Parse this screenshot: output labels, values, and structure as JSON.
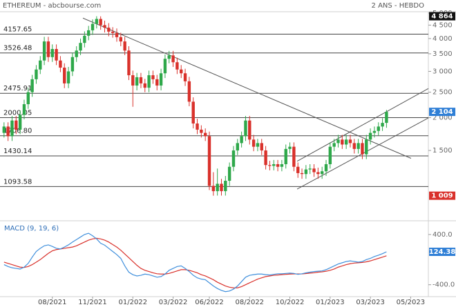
{
  "chart_data": [
    {
      "type": "candlestick",
      "title": "ETHEREUM - abcbourse.com",
      "subtitle": "2 ANS - HEBDO",
      "log_scale": true,
      "up_color": "#2ea84a",
      "down_color": "#d9312b",
      "level_color": "#444444",
      "trend_color": "#555555",
      "open": [
        1750,
        1850,
        1700,
        1950,
        1800,
        2050,
        2250,
        2500,
        2800,
        3050,
        3300,
        3900,
        3400,
        3650,
        3300,
        3100,
        2700,
        3000,
        3400,
        3600,
        3850,
        4100,
        4300,
        4550,
        4750,
        4500,
        4400,
        4250,
        4200,
        4050,
        3900,
        3600,
        2900,
        2650,
        2850,
        2700,
        2600,
        2900,
        2800,
        2650,
        2950,
        3350,
        3450,
        3250,
        3050,
        2950,
        2750,
        2300,
        1900,
        1800,
        1750,
        1700,
        1100,
        1050,
        1120,
        1050,
        1150,
        1300,
        1500,
        1600,
        1700,
        1950,
        1650,
        1550,
        1600,
        1500,
        1320,
        1310,
        1330,
        1300,
        1330,
        1520,
        1550,
        1300,
        1230,
        1220,
        1270,
        1280,
        1240,
        1220,
        1250,
        1330,
        1550,
        1600,
        1650,
        1580,
        1650,
        1600,
        1520,
        1600,
        1450,
        1650,
        1750,
        1780,
        1850,
        1910
      ],
      "high": [
        1920,
        1920,
        2030,
        2030,
        2130,
        2340,
        2600,
        2910,
        3170,
        3430,
        4060,
        4060,
        3800,
        3800,
        3430,
        3220,
        3120,
        3540,
        3740,
        4000,
        4260,
        4470,
        4730,
        4864,
        4860,
        4680,
        4580,
        4420,
        4370,
        4210,
        4060,
        3740,
        3020,
        2960,
        2960,
        2810,
        3020,
        3020,
        2910,
        3070,
        3480,
        3590,
        3590,
        3380,
        3170,
        3070,
        2860,
        2390,
        1980,
        1870,
        1820,
        1770,
        1240,
        1280,
        1170,
        1200,
        1350,
        1560,
        1660,
        1770,
        2030,
        2030,
        1720,
        1660,
        1660,
        1560,
        1370,
        1380,
        1380,
        1380,
        1580,
        1610,
        1610,
        1350,
        1280,
        1320,
        1330,
        1330,
        1290,
        1300,
        1380,
        1610,
        1660,
        1720,
        1720,
        1720,
        1720,
        1660,
        1660,
        1660,
        1720,
        1820,
        1850,
        1920,
        1990,
        2140
      ],
      "low": [
        1680,
        1630,
        1630,
        1730,
        1730,
        1970,
        2160,
        2400,
        2690,
        2930,
        3170,
        3260,
        3260,
        3170,
        2980,
        2590,
        2590,
        2880,
        3260,
        3460,
        3700,
        3940,
        4130,
        4370,
        4320,
        4220,
        4080,
        4030,
        3890,
        3740,
        3460,
        2780,
        2200,
        2540,
        2590,
        2500,
        2500,
        2690,
        2540,
        2540,
        2830,
        3220,
        3120,
        2930,
        2830,
        2640,
        2210,
        1820,
        1730,
        1680,
        1630,
        1060,
        1009,
        1010,
        1010,
        1010,
        1100,
        1250,
        1440,
        1540,
        1630,
        1580,
        1490,
        1490,
        1440,
        1270,
        1260,
        1260,
        1250,
        1250,
        1280,
        1460,
        1250,
        1180,
        1170,
        1170,
        1220,
        1190,
        1170,
        1170,
        1200,
        1280,
        1490,
        1540,
        1520,
        1520,
        1540,
        1460,
        1460,
        1390,
        1390,
        1580,
        1680,
        1710,
        1780,
        1830
      ],
      "close": [
        1850,
        1700,
        1950,
        1800,
        2050,
        2250,
        2500,
        2800,
        3050,
        3300,
        3900,
        3400,
        3650,
        3300,
        3100,
        2700,
        3000,
        3400,
        3600,
        3850,
        4100,
        4300,
        4550,
        4750,
        4500,
        4400,
        4250,
        4200,
        4050,
        3900,
        3600,
        2900,
        2650,
        2850,
        2700,
        2600,
        2900,
        2800,
        2650,
        2950,
        3350,
        3450,
        3250,
        3050,
        2950,
        2750,
        2300,
        1900,
        1800,
        1750,
        1700,
        1100,
        1050,
        1120,
        1050,
        1150,
        1300,
        1500,
        1600,
        1700,
        1950,
        1650,
        1550,
        1600,
        1500,
        1320,
        1310,
        1330,
        1300,
        1330,
        1520,
        1550,
        1300,
        1230,
        1220,
        1270,
        1280,
        1240,
        1220,
        1250,
        1330,
        1550,
        1600,
        1650,
        1580,
        1650,
        1600,
        1520,
        1600,
        1450,
        1650,
        1750,
        1780,
        1850,
        1910,
        2104
      ],
      "xlim": [
        -1,
        105.4
      ],
      "xticks": [
        {
          "value": 12,
          "label": "08/2021"
        },
        {
          "value": 22,
          "label": "11/2021"
        },
        {
          "value": 32,
          "label": "01/2022"
        },
        {
          "value": 42,
          "label": "03/2022"
        },
        {
          "value": 51,
          "label": "06/2022"
        },
        {
          "value": 61,
          "label": "08/2022"
        },
        {
          "value": 71,
          "label": "10/2022"
        },
        {
          "value": 81,
          "label": "01/2023"
        },
        {
          "value": 91,
          "label": "03/2023"
        },
        {
          "value": 101,
          "label": "05/2023"
        }
      ],
      "ylim": [
        810,
        5060
      ],
      "yticks": [
        {
          "value": 5000,
          "label": "5 000"
        },
        {
          "value": 4500,
          "label": "4 500"
        },
        {
          "value": 4000,
          "label": "4 000"
        },
        {
          "value": 3500,
          "label": "3 500"
        },
        {
          "value": 3000,
          "label": "3 000"
        },
        {
          "value": 2500,
          "label": "2 500"
        },
        {
          "value": 2000,
          "label": "2 000"
        },
        {
          "value": 1500,
          "label": "1 500"
        }
      ],
      "levels": [
        4157.65,
        3526.48,
        2475.91,
        2000.05,
        {
          "value": 1706.8,
          "label": "1706.80"
        },
        1430.14,
        1093.58
      ],
      "trendlines": [
        {
          "x": [
            19.6,
            101.1
          ],
          "y": [
            4785,
            1400
          ]
        },
        {
          "x": [
            72.8,
            105.4
          ],
          "y": [
            1069,
            1995
          ]
        },
        {
          "x": [
            72.8,
            105.4
          ],
          "y": [
            1365,
            2582
          ]
        }
      ],
      "markers": [
        {
          "value": 4864,
          "label": "4 864",
          "color": "#111111"
        },
        {
          "value": 2104,
          "label": "2 104",
          "color": "#2f7fd6"
        },
        {
          "value": 1009,
          "label": "1 009",
          "color": "#d9312b"
        }
      ]
    },
    {
      "type": "line",
      "title": "MACD (9, 19, 6)",
      "title_color": "#2f6fb8",
      "xlim": [
        -1,
        105.4
      ],
      "ylim": [
        -590,
        575
      ],
      "yticks": [
        {
          "value": 400,
          "label": "400.0"
        },
        {
          "value": -400,
          "label": "-400.0"
        }
      ],
      "series": [
        {
          "color": "#3f8fdc",
          "values": [
            -80,
            -110,
            -130,
            -140,
            -150,
            -120,
            -60,
            40,
            130,
            180,
            220,
            235,
            210,
            180,
            170,
            200,
            235,
            280,
            320,
            360,
            400,
            420,
            380,
            330,
            260,
            230,
            180,
            130,
            80,
            20,
            -100,
            -200,
            -240,
            -260,
            -250,
            -230,
            -240,
            -260,
            -280,
            -270,
            -230,
            -170,
            -140,
            -110,
            -100,
            -140,
            -190,
            -250,
            -290,
            -310,
            -320,
            -370,
            -420,
            -460,
            -490,
            -510,
            -500,
            -470,
            -420,
            -350,
            -280,
            -250,
            -240,
            -230,
            -230,
            -240,
            -245,
            -235,
            -225,
            -225,
            -220,
            -215,
            -220,
            -235,
            -225,
            -210,
            -200,
            -190,
            -185,
            -180,
            -160,
            -130,
            -100,
            -70,
            -50,
            -30,
            -20,
            -30,
            -40,
            -30,
            0,
            20,
            50,
            70,
            95,
            124.38
          ]
        },
        {
          "color": "#d9312b",
          "values": [
            -40,
            -60,
            -80,
            -100,
            -120,
            -125,
            -110,
            -80,
            -40,
            0,
            50,
            100,
            140,
            160,
            170,
            180,
            190,
            200,
            220,
            250,
            280,
            310,
            330,
            340,
            330,
            310,
            280,
            240,
            200,
            150,
            90,
            30,
            -30,
            -90,
            -140,
            -170,
            -190,
            -210,
            -225,
            -230,
            -230,
            -220,
            -200,
            -180,
            -160,
            -160,
            -170,
            -190,
            -210,
            -240,
            -260,
            -290,
            -320,
            -360,
            -390,
            -420,
            -440,
            -450,
            -450,
            -430,
            -400,
            -370,
            -340,
            -310,
            -290,
            -270,
            -260,
            -250,
            -245,
            -240,
            -235,
            -230,
            -228,
            -228,
            -228,
            -222,
            -215,
            -210,
            -200,
            -195,
            -185,
            -170,
            -150,
            -120,
            -100,
            -80,
            -65,
            -55,
            -50,
            -45,
            -35,
            -20,
            0,
            20,
            40,
            60
          ]
        }
      ],
      "markers": [
        {
          "value": 124.38,
          "color": "#2f7fd6"
        }
      ]
    }
  ]
}
